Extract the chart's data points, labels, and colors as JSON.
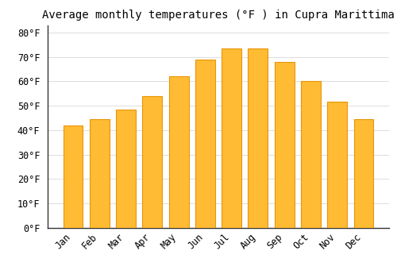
{
  "title": "Average monthly temperatures (°F ) in Cupra Marittima",
  "months": [
    "Jan",
    "Feb",
    "Mar",
    "Apr",
    "May",
    "Jun",
    "Jul",
    "Aug",
    "Sep",
    "Oct",
    "Nov",
    "Dec"
  ],
  "values": [
    42,
    44.5,
    48.5,
    54,
    62,
    69,
    73.5,
    73.5,
    68,
    60,
    51.5,
    44.5
  ],
  "bar_color": "#FFBB33",
  "bar_edge_color": "#E8960A",
  "background_color": "#FFFFFF",
  "grid_color": "#DDDDDD",
  "ylim": [
    0,
    83
  ],
  "yticks": [
    0,
    10,
    20,
    30,
    40,
    50,
    60,
    70,
    80
  ],
  "title_fontsize": 10,
  "tick_fontsize": 8.5,
  "font_family": "monospace",
  "bar_width": 0.75
}
